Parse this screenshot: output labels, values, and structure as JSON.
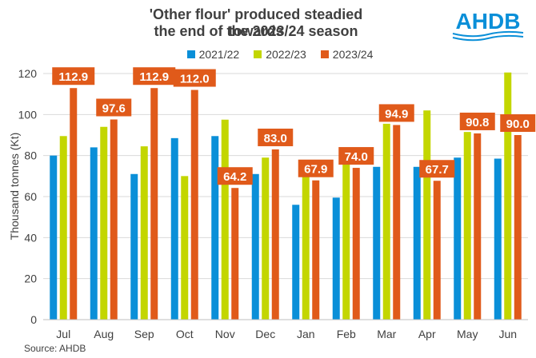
{
  "chart_data": {
    "type": "bar",
    "title": "'Other flour' produced steadied towards the end of the 2023/24 season",
    "title_lines": [
      "'Other flour' produced steadied towards",
      "the end of the 2023/24 season"
    ],
    "ylabel": "Thousand tonnes (Kt)",
    "xlabel": "",
    "ylim": [
      0,
      120
    ],
    "yticks": [
      0,
      20,
      40,
      60,
      80,
      100,
      120
    ],
    "grid": true,
    "legend_position": "top",
    "categories": [
      "Jul",
      "Aug",
      "Sep",
      "Oct",
      "Nov",
      "Dec",
      "Jan",
      "Feb",
      "Mar",
      "Apr",
      "May",
      "Jun"
    ],
    "series": [
      {
        "name": "2021/22",
        "color": "#0a8fd8",
        "values": [
          80,
          84,
          71,
          88.5,
          89.5,
          71,
          56,
          59.5,
          74.5,
          74.5,
          79,
          78.5
        ]
      },
      {
        "name": "2022/23",
        "color": "#c3d600",
        "values": [
          89.5,
          94,
          84.5,
          70,
          97.5,
          79,
          71,
          76,
          95.5,
          102,
          91.5,
          120.5
        ]
      },
      {
        "name": "2023/24",
        "color": "#e05a1a",
        "values": [
          112.9,
          97.6,
          112.9,
          112.0,
          64.2,
          83.0,
          67.9,
          74.0,
          94.9,
          67.7,
          90.8,
          90.0
        ],
        "data_labels": [
          "112.9",
          "97.6",
          "112.9",
          "112.0",
          "64.2",
          "83.0",
          "67.9",
          "74.0",
          "94.9",
          "67.7",
          "90.8",
          "90.0"
        ]
      }
    ]
  },
  "logo": {
    "text": "AHDB",
    "color": "#0a8fd8"
  },
  "source": "Source: AHDB"
}
